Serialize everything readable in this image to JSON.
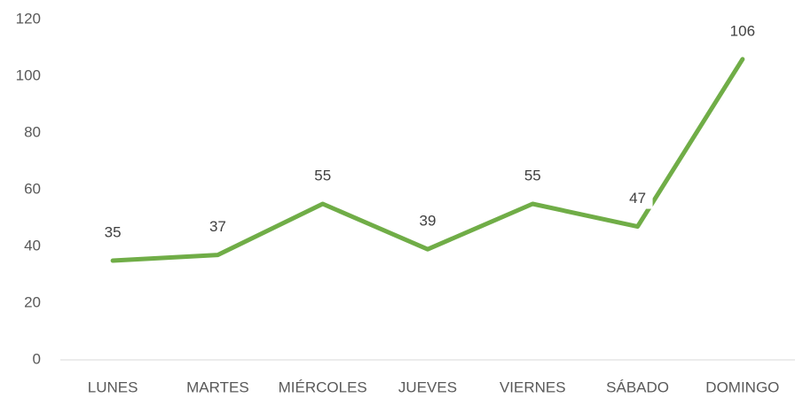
{
  "chart_data": {
    "type": "line",
    "categories": [
      "LUNES",
      "MARTES",
      "MIÉRCOLES",
      "JUEVES",
      "VIERNES",
      "SÁBADO",
      "DOMINGO"
    ],
    "series": [
      {
        "color": "#70ad47",
        "values": [
          35,
          37,
          55,
          39,
          55,
          47,
          106
        ]
      }
    ],
    "ylim": [
      0,
      120
    ],
    "yticks": [
      0,
      20,
      40,
      60,
      80,
      100,
      120
    ],
    "grid": false,
    "data_labels": true
  }
}
